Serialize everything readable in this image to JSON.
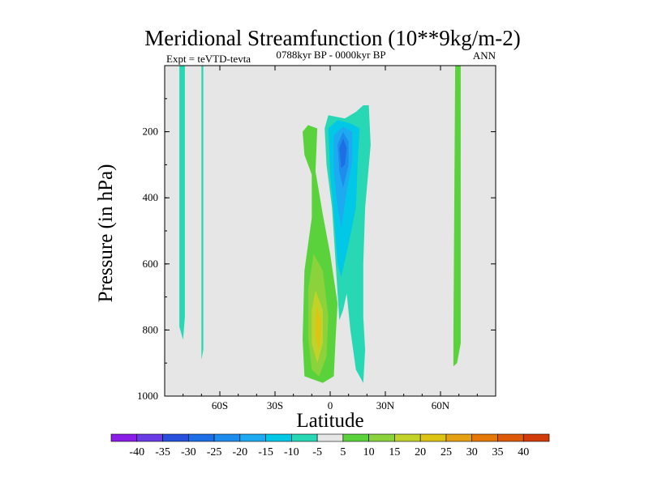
{
  "chart_data": {
    "type": "heatmap",
    "subtype": "filled-contour",
    "title": "Meridional Streamfunction (10**9kg/m-2)",
    "subtitle": "0788kyr BP - 0000kyr BP",
    "left_string": "Expt = teVTD-tevta",
    "right_string": "ANN",
    "xlabel": "Latitude",
    "ylabel": "Pressure (in hPa)",
    "xlim": [
      -90,
      90
    ],
    "ylim": [
      1000,
      0
    ],
    "y_reversed": true,
    "x_ticks": [
      {
        "value": -60,
        "label": "60S"
      },
      {
        "value": -30,
        "label": "30S"
      },
      {
        "value": 0,
        "label": "0"
      },
      {
        "value": 30,
        "label": "30N"
      },
      {
        "value": 60,
        "label": "60N"
      }
    ],
    "y_ticks": [
      {
        "value": 200,
        "label": "200"
      },
      {
        "value": 400,
        "label": "400"
      },
      {
        "value": 600,
        "label": "600"
      },
      {
        "value": 800,
        "label": "800"
      },
      {
        "value": 1000,
        "label": "1000"
      }
    ],
    "background_color": "#e6e6e6",
    "colorbar": {
      "labels": [
        "-40",
        "-35",
        "-30",
        "-25",
        "-20",
        "-15",
        "-10",
        "-5",
        "5",
        "10",
        "15",
        "20",
        "25",
        "30",
        "35",
        "40"
      ],
      "colors": [
        "#8a1ee6",
        "#6a3ce6",
        "#2850dc",
        "#1e6ee6",
        "#1e8cec",
        "#1eaaf0",
        "#00c8e6",
        "#28d7b4",
        "#e6e6e6",
        "#5ad23c",
        "#8cd23c",
        "#c3d228",
        "#dcc314",
        "#e6a014",
        "#e6780a",
        "#dc5a0a",
        "#d23c0a"
      ]
    },
    "regions": [
      {
        "name": "sh-strip-1",
        "level": "-5",
        "points": [
          [
            -82,
            0
          ],
          [
            -79,
            0
          ],
          [
            -79,
            760
          ],
          [
            -80,
            830
          ],
          [
            -82,
            790
          ]
        ]
      },
      {
        "name": "sh-strip-2",
        "level": "-5",
        "points": [
          [
            -70,
            0
          ],
          [
            -69,
            0
          ],
          [
            -69,
            860
          ],
          [
            -70,
            890
          ],
          [
            -70,
            760
          ]
        ]
      },
      {
        "name": "nh-strip",
        "level": "5",
        "points": [
          [
            68,
            0
          ],
          [
            71,
            0
          ],
          [
            71,
            840
          ],
          [
            69,
            900
          ],
          [
            67,
            910
          ],
          [
            67,
            820
          ]
        ]
      },
      {
        "name": "positive-outer",
        "level": "5",
        "points": [
          [
            -15,
            200
          ],
          [
            -12,
            180
          ],
          [
            -7,
            190
          ],
          [
            -8,
            320
          ],
          [
            -4,
            450
          ],
          [
            0,
            570
          ],
          [
            4,
            720
          ],
          [
            3,
            820
          ],
          [
            2,
            940
          ],
          [
            -4,
            960
          ],
          [
            -14,
            940
          ],
          [
            -15,
            830
          ],
          [
            -14,
            620
          ],
          [
            -10,
            460
          ],
          [
            -10,
            330
          ],
          [
            -14,
            270
          ]
        ]
      },
      {
        "name": "positive-10",
        "level": "10",
        "points": [
          [
            -9,
            570
          ],
          [
            -4,
            620
          ],
          [
            -1,
            760
          ],
          [
            -2,
            880
          ],
          [
            -6,
            940
          ],
          [
            -10,
            920
          ],
          [
            -12,
            820
          ],
          [
            -12,
            680
          ]
        ]
      },
      {
        "name": "positive-15",
        "level": "15",
        "points": [
          [
            -8,
            680
          ],
          [
            -4,
            740
          ],
          [
            -4,
            840
          ],
          [
            -7,
            900
          ],
          [
            -10,
            840
          ],
          [
            -10,
            740
          ]
        ]
      },
      {
        "name": "positive-20",
        "level": "20",
        "points": [
          [
            -7,
            730
          ],
          [
            -5,
            780
          ],
          [
            -6,
            860
          ],
          [
            -8,
            820
          ],
          [
            -8,
            760
          ]
        ]
      },
      {
        "name": "negative-outer",
        "level": "-5",
        "points": [
          [
            -3,
            190
          ],
          [
            -1,
            150
          ],
          [
            8,
            160
          ],
          [
            14,
            140
          ],
          [
            18,
            120
          ],
          [
            21,
            120
          ],
          [
            22,
            240
          ],
          [
            19,
            430
          ],
          [
            18,
            600
          ],
          [
            18,
            760
          ],
          [
            19,
            860
          ],
          [
            18,
            960
          ],
          [
            14,
            920
          ],
          [
            11,
            800
          ],
          [
            9,
            690
          ],
          [
            7,
            740
          ],
          [
            5,
            770
          ],
          [
            3,
            600
          ],
          [
            1,
            430
          ],
          [
            -2,
            300
          ]
        ]
      },
      {
        "name": "negative-10",
        "level": "-10",
        "points": [
          [
            -1,
            190
          ],
          [
            4,
            165
          ],
          [
            11,
            175
          ],
          [
            16,
            190
          ],
          [
            15,
            290
          ],
          [
            14,
            430
          ],
          [
            10,
            540
          ],
          [
            6,
            640
          ],
          [
            4,
            600
          ],
          [
            2,
            450
          ],
          [
            0,
            330
          ]
        ]
      },
      {
        "name": "negative-15",
        "level": "-15",
        "points": [
          [
            2,
            210
          ],
          [
            7,
            185
          ],
          [
            12,
            200
          ],
          [
            12,
            290
          ],
          [
            9,
            380
          ],
          [
            6,
            490
          ],
          [
            4,
            430
          ],
          [
            2,
            320
          ]
        ]
      },
      {
        "name": "negative-20",
        "level": "-20",
        "points": [
          [
            4,
            240
          ],
          [
            7,
            200
          ],
          [
            10,
            230
          ],
          [
            10,
            300
          ],
          [
            7,
            370
          ],
          [
            5,
            320
          ]
        ]
      },
      {
        "name": "negative-25",
        "level": "-25",
        "points": [
          [
            5,
            250
          ],
          [
            7,
            220
          ],
          [
            9,
            250
          ],
          [
            8,
            300
          ],
          [
            6,
            310
          ]
        ]
      }
    ]
  }
}
